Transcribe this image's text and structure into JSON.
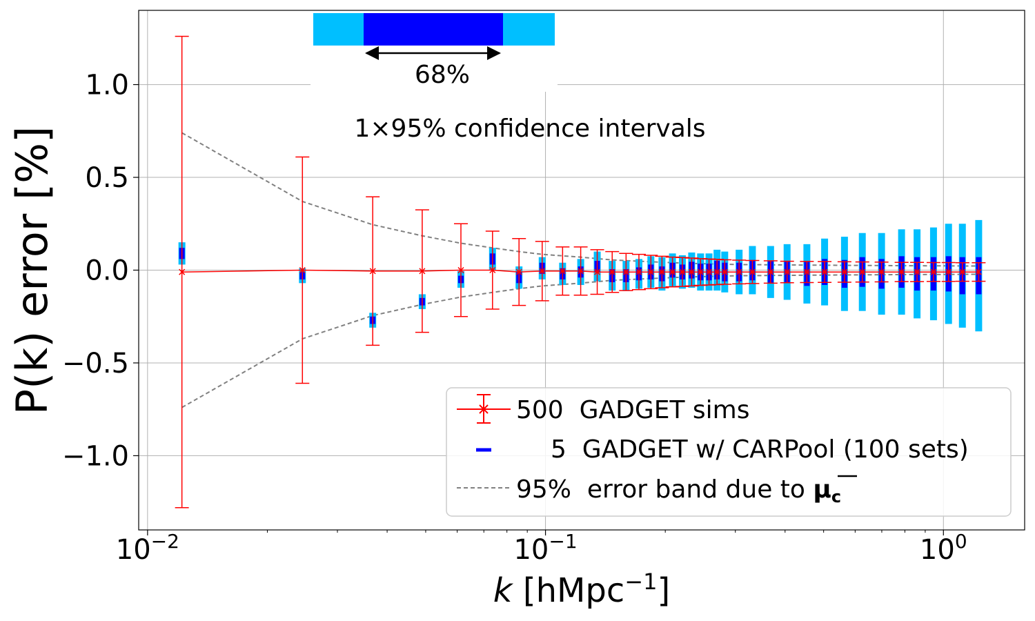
{
  "chart_data": {
    "type": "scatter",
    "title": "",
    "xlabel_prefix": "k",
    "xlabel_units": "[hMpc",
    "xlabel_exp": "−1",
    "xlabel_close": "]",
    "ylabel": "P(k) error  [%]",
    "xscale": "log",
    "xlim": [
      0.0095,
      1.6
    ],
    "ylim": [
      -1.4,
      1.4
    ],
    "x_ticks": [
      {
        "value": 0.01,
        "base": "10",
        "exp": "−2"
      },
      {
        "value": 0.1,
        "base": "10",
        "exp": "−1"
      },
      {
        "value": 1.0,
        "base": "10",
        "exp": "0"
      }
    ],
    "y_ticks": [
      {
        "value": 1.0,
        "label": "1.0"
      },
      {
        "value": 0.5,
        "label": "0.5"
      },
      {
        "value": 0.0,
        "label": "0.0"
      },
      {
        "value": -0.5,
        "label": "−0.5"
      },
      {
        "value": -1.0,
        "label": "−1.0"
      }
    ],
    "grid": true,
    "colors": {
      "gadget": "#ff0000",
      "carpool_68": "#0000ff",
      "carpool_95": "#00bfff",
      "band": "#808080"
    },
    "series": [
      {
        "name": "500  GADGET sims",
        "type": "errorbar",
        "x": [
          0.0122,
          0.0245,
          0.0368,
          0.049,
          0.0613,
          0.0736,
          0.0858,
          0.0981,
          0.1104,
          0.1226,
          0.1349,
          0.1471,
          0.1594,
          0.1717,
          0.184,
          0.1962,
          0.2085,
          0.2208,
          0.233,
          0.2453,
          0.2576,
          0.2698,
          0.2821,
          0.3066,
          0.3311,
          0.3679,
          0.4047,
          0.4538,
          0.5028,
          0.5641,
          0.6254,
          0.6991,
          0.7849,
          0.8585,
          0.9443,
          1.0301,
          1.116,
          1.2264
        ],
        "y": [
          -0.01,
          0.0,
          -0.005,
          -0.005,
          0.0,
          0.0,
          -0.01,
          -0.005,
          -0.005,
          -0.005,
          -0.01,
          -0.01,
          -0.01,
          -0.01,
          -0.01,
          -0.01,
          -0.01,
          -0.01,
          -0.01,
          -0.01,
          -0.01,
          -0.01,
          -0.01,
          -0.01,
          -0.01,
          -0.01,
          -0.01,
          -0.01,
          -0.01,
          -0.01,
          -0.01,
          -0.01,
          -0.01,
          -0.01,
          -0.01,
          -0.01,
          -0.01,
          -0.01
        ],
        "yerr": [
          1.27,
          0.61,
          0.4,
          0.33,
          0.25,
          0.21,
          0.18,
          0.16,
          0.13,
          0.13,
          0.12,
          0.11,
          0.1,
          0.095,
          0.09,
          0.085,
          0.08,
          0.078,
          0.075,
          0.072,
          0.07,
          0.068,
          0.066,
          0.064,
          0.062,
          0.06,
          0.058,
          0.057,
          0.056,
          0.055,
          0.054,
          0.053,
          0.052,
          0.052,
          0.051,
          0.051,
          0.05,
          0.05
        ]
      },
      {
        "name": "5  GADGET w/ CARPool (100 sets)",
        "type": "confidence_intervals",
        "x": [
          0.0122,
          0.0245,
          0.0368,
          0.049,
          0.0613,
          0.0736,
          0.0858,
          0.0981,
          0.1104,
          0.1226,
          0.1349,
          0.1471,
          0.1594,
          0.1717,
          0.184,
          0.1962,
          0.2085,
          0.2208,
          0.233,
          0.2453,
          0.2576,
          0.2698,
          0.2821,
          0.3066,
          0.3311,
          0.3679,
          0.4047,
          0.4538,
          0.5028,
          0.5641,
          0.6254,
          0.6991,
          0.7849,
          0.8585,
          0.9443,
          1.0301,
          1.116,
          1.2264
        ],
        "center": [
          0.09,
          -0.03,
          -0.27,
          -0.17,
          -0.05,
          0.06,
          -0.04,
          0.01,
          -0.02,
          -0.01,
          0.02,
          -0.03,
          -0.03,
          -0.02,
          -0.01,
          -0.02,
          0.0,
          -0.01,
          0.0,
          -0.01,
          -0.01,
          0.0,
          -0.01,
          -0.01,
          0.0,
          -0.01,
          -0.01,
          -0.02,
          -0.01,
          -0.02,
          -0.01,
          -0.02,
          -0.01,
          -0.02,
          -0.02,
          -0.02,
          -0.03,
          -0.03
        ],
        "half68": [
          0.03,
          0.02,
          0.02,
          0.02,
          0.02,
          0.03,
          0.03,
          0.03,
          0.03,
          0.03,
          0.03,
          0.035,
          0.035,
          0.035,
          0.04,
          0.04,
          0.04,
          0.04,
          0.045,
          0.045,
          0.045,
          0.05,
          0.05,
          0.05,
          0.055,
          0.06,
          0.06,
          0.065,
          0.07,
          0.075,
          0.08,
          0.08,
          0.085,
          0.09,
          0.09,
          0.095,
          0.1,
          0.1
        ],
        "half95": [
          0.06,
          0.04,
          0.04,
          0.04,
          0.045,
          0.06,
          0.06,
          0.06,
          0.06,
          0.07,
          0.08,
          0.08,
          0.08,
          0.08,
          0.085,
          0.09,
          0.09,
          0.09,
          0.095,
          0.1,
          0.1,
          0.11,
          0.11,
          0.12,
          0.13,
          0.14,
          0.15,
          0.16,
          0.18,
          0.2,
          0.21,
          0.22,
          0.23,
          0.24,
          0.25,
          0.27,
          0.28,
          0.3
        ]
      },
      {
        "name": "95%  error band due to ",
        "name_symbol": "μ",
        "name_sub": "c",
        "type": "dashed_band",
        "x": [
          0.0122,
          0.0245,
          0.0368,
          0.049,
          0.0613,
          0.0736,
          0.0858,
          0.0981,
          0.1226,
          0.1471,
          0.1717,
          0.2085,
          0.2453,
          0.3066,
          0.4047,
          0.5641,
          0.7849,
          1.0301,
          1.2264
        ],
        "upper": [
          0.74,
          0.37,
          0.245,
          0.185,
          0.145,
          0.12,
          0.1,
          0.085,
          0.07,
          0.055,
          0.048,
          0.04,
          0.035,
          0.03,
          0.028,
          0.026,
          0.024,
          0.023,
          0.022
        ],
        "lower": [
          -0.74,
          -0.37,
          -0.245,
          -0.185,
          -0.145,
          -0.12,
          -0.1,
          -0.085,
          -0.07,
          -0.055,
          -0.048,
          -0.04,
          -0.035,
          -0.03,
          -0.028,
          -0.026,
          -0.024,
          -0.023,
          -0.022
        ]
      }
    ],
    "annotations": {
      "inset_label": "68%",
      "inset_caption": "1×95% confidence intervals"
    },
    "legend_placement": "lower-right"
  }
}
